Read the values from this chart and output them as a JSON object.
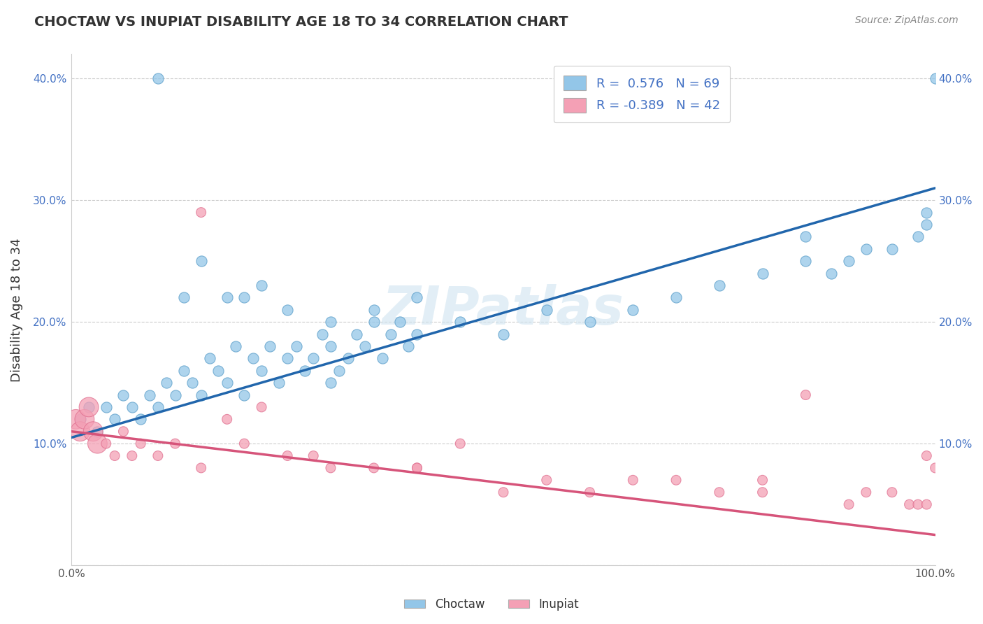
{
  "title": "CHOCTAW VS INUPIAT DISABILITY AGE 18 TO 34 CORRELATION CHART",
  "source": "Source: ZipAtlas.com",
  "ylabel": "Disability Age 18 to 34",
  "watermark": "ZIPatlas",
  "choctaw_r": 0.576,
  "choctaw_n": 69,
  "inupiat_r": -0.389,
  "inupiat_n": 42,
  "choctaw_color": "#93c6e8",
  "choctaw_edge_color": "#5b9ec9",
  "choctaw_line_color": "#2166ac",
  "inupiat_color": "#f4a0b5",
  "inupiat_edge_color": "#e07090",
  "inupiat_line_color": "#d6547a",
  "legend_text_color": "#4472c4",
  "xlim": [
    0,
    100
  ],
  "ylim": [
    0,
    42
  ],
  "background_color": "#ffffff",
  "grid_color": "#cccccc",
  "choctaw_line_y0": 10.5,
  "choctaw_line_y100": 31.0,
  "inupiat_line_y0": 11.0,
  "inupiat_line_y100": 2.5,
  "choctaw_x": [
    1,
    2,
    3,
    4,
    5,
    6,
    7,
    8,
    9,
    10,
    11,
    12,
    13,
    14,
    15,
    16,
    17,
    18,
    19,
    20,
    21,
    22,
    23,
    24,
    25,
    26,
    27,
    28,
    29,
    30,
    31,
    32,
    33,
    34,
    35,
    36,
    37,
    38,
    39,
    40,
    45,
    50,
    55,
    60,
    65,
    70,
    75,
    80,
    85,
    88,
    90,
    92,
    95,
    98,
    99,
    100,
    10,
    13,
    18,
    20,
    22,
    25,
    30,
    35,
    40,
    85,
    99,
    30,
    15
  ],
  "choctaw_y": [
    12,
    13,
    11,
    13,
    12,
    14,
    13,
    12,
    14,
    13,
    15,
    14,
    16,
    15,
    14,
    17,
    16,
    15,
    18,
    14,
    17,
    16,
    18,
    15,
    17,
    18,
    16,
    17,
    19,
    18,
    16,
    17,
    19,
    18,
    20,
    17,
    19,
    20,
    18,
    19,
    20,
    19,
    21,
    20,
    21,
    22,
    23,
    24,
    25,
    24,
    25,
    26,
    26,
    27,
    28,
    40,
    40,
    22,
    22,
    22,
    23,
    21,
    20,
    21,
    22,
    27,
    29,
    15,
    25
  ],
  "inupiat_x": [
    0.5,
    1,
    1.5,
    2,
    2.5,
    3,
    4,
    5,
    6,
    7,
    8,
    10,
    12,
    15,
    18,
    20,
    22,
    25,
    28,
    30,
    35,
    40,
    45,
    50,
    55,
    60,
    65,
    70,
    75,
    80,
    85,
    90,
    92,
    95,
    97,
    98,
    99,
    100,
    15,
    40,
    80,
    99
  ],
  "inupiat_y": [
    12,
    11,
    12,
    13,
    11,
    10,
    10,
    9,
    11,
    9,
    10,
    9,
    10,
    29,
    12,
    10,
    13,
    9,
    9,
    8,
    8,
    8,
    10,
    6,
    7,
    6,
    7,
    7,
    6,
    6,
    14,
    5,
    6,
    6,
    5,
    5,
    5,
    8,
    8,
    8,
    7,
    9
  ],
  "inupiat_large_indices": [
    0,
    1,
    2,
    3,
    4,
    5
  ]
}
